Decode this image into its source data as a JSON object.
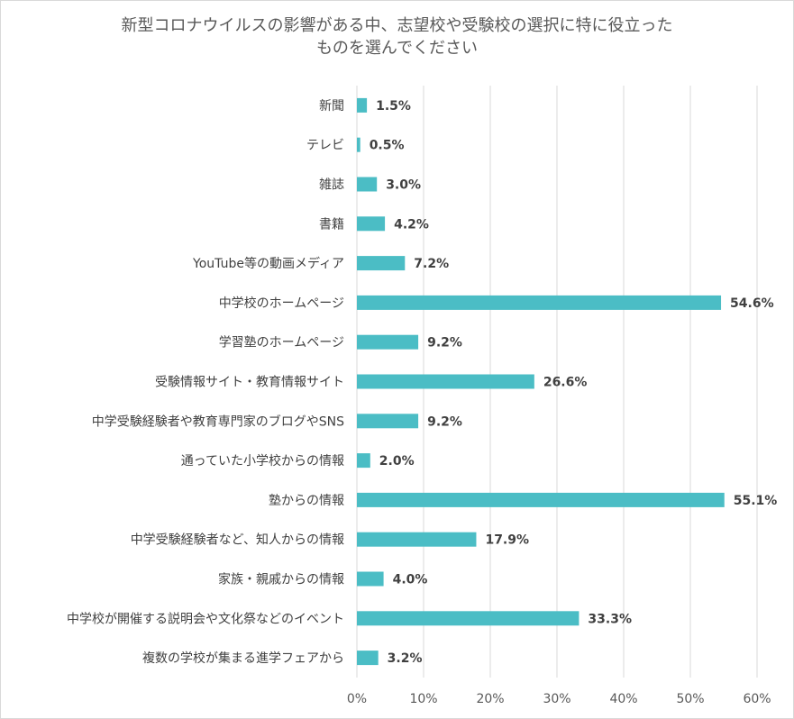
{
  "chart_data": {
    "type": "bar",
    "orientation": "horizontal",
    "title_lines": [
      "新型コロナウイルスの影響がある中、志望校や受験校の選択に特に役立った",
      "ものを選んでください"
    ],
    "categories": [
      "新聞",
      "テレビ",
      "雑誌",
      "書籍",
      "YouTube等の動画メディア",
      "中学校のホームページ",
      "学習塾のホームページ",
      "受験情報サイト・教育情報サイト",
      "中学受験経験者や教育専門家のブログやSNS",
      "通っていた小学校からの情報",
      "塾からの情報",
      "中学受験経験者など、知人からの情報",
      "家族・親戚からの情報",
      "中学校が開催する説明会や文化祭などのイベント",
      "複数の学校が集まる進学フェアから"
    ],
    "values": [
      1.5,
      0.5,
      3.0,
      4.2,
      7.2,
      54.6,
      9.2,
      26.6,
      9.2,
      2.0,
      55.1,
      17.9,
      4.0,
      33.3,
      3.2
    ],
    "data_labels": [
      "1.5%",
      "0.5%",
      "3.0%",
      "4.2%",
      "7.2%",
      "54.6%",
      "9.2%",
      "26.6%",
      "9.2%",
      "2.0%",
      "55.1%",
      "17.9%",
      "4.0%",
      "33.3%",
      "3.2%"
    ],
    "xlim": [
      0,
      60
    ],
    "x_ticks": [
      0,
      10,
      20,
      30,
      40,
      50,
      60
    ],
    "x_tick_labels": [
      "0%",
      "10%",
      "20%",
      "30%",
      "40%",
      "50%",
      "60%"
    ],
    "grid": true,
    "legend": "none",
    "bar_color": "#4bbdc5",
    "grid_color": "#d9d9d9"
  }
}
